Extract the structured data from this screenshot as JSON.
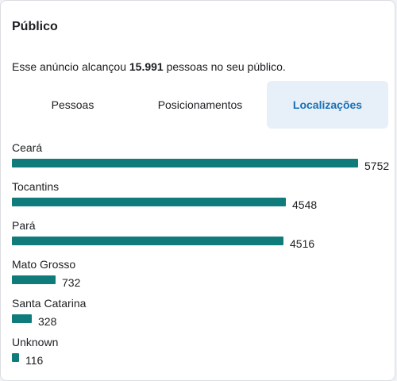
{
  "panel": {
    "title": "Público",
    "summary_prefix": "Esse anúncio alcançou ",
    "summary_value": "15.991",
    "summary_suffix": " pessoas no seu público."
  },
  "tabs": [
    {
      "label": "Pessoas",
      "active": false
    },
    {
      "label": "Posicionamentos",
      "active": false
    },
    {
      "label": "Localizações",
      "active": true
    }
  ],
  "colors": {
    "bar": "#0f7b7b",
    "active_tab_bg": "#e7f0f8",
    "active_tab_text": "#1a6fb5"
  },
  "locations": [
    {
      "name": "Ceará",
      "value": 5752,
      "value_label": "5752"
    },
    {
      "name": "Tocantins",
      "value": 4548,
      "value_label": "4548"
    },
    {
      "name": "Pará",
      "value": 4516,
      "value_label": "4516"
    },
    {
      "name": "Mato Grosso",
      "value": 732,
      "value_label": "732"
    },
    {
      "name": "Santa Catarina",
      "value": 328,
      "value_label": "328"
    },
    {
      "name": "Unknown",
      "value": 116,
      "value_label": "116"
    }
  ]
}
